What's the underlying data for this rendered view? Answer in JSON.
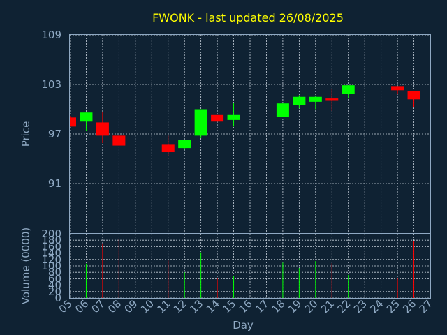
{
  "title": "FWONK - last updated 26/08/2025",
  "colors": {
    "background": "#0f2233",
    "up": "#00ff00",
    "down": "#ff0000",
    "axis": "#8fa9c3",
    "title": "#ffff00"
  },
  "chart_data": [
    {
      "type": "candlestick",
      "title": "FWONK - last updated 26/08/2025",
      "ylabel": "Price",
      "ylim": [
        85,
        109
      ],
      "yticks": [
        "91",
        "97",
        "103",
        "109"
      ],
      "grid": true,
      "x": [
        "05",
        "06",
        "07",
        "08",
        "09",
        "10",
        "11",
        "12",
        "13",
        "14",
        "15",
        "16",
        "17",
        "18",
        "19",
        "20",
        "21",
        "22",
        "23",
        "24",
        "25",
        "26",
        "27"
      ],
      "candles": [
        {
          "day": "05",
          "open": 99.0,
          "high": 99.2,
          "low": 97.9,
          "close": 97.9
        },
        {
          "day": "06",
          "open": 98.5,
          "high": 99.6,
          "low": 97.4,
          "close": 99.6
        },
        {
          "day": "07",
          "open": 98.4,
          "high": 99.7,
          "low": 95.9,
          "close": 96.8
        },
        {
          "day": "08",
          "open": 96.8,
          "high": 96.8,
          "low": 95.6,
          "close": 95.6
        },
        {
          "day": "11",
          "open": 95.7,
          "high": 96.8,
          "low": 94.4,
          "close": 94.8
        },
        {
          "day": "12",
          "open": 95.3,
          "high": 96.3,
          "low": 95.2,
          "close": 96.3
        },
        {
          "day": "13",
          "open": 96.8,
          "high": 100.0,
          "low": 96.5,
          "close": 100.0
        },
        {
          "day": "14",
          "open": 99.3,
          "high": 99.3,
          "low": 98.5,
          "close": 98.5
        },
        {
          "day": "15",
          "open": 98.7,
          "high": 100.8,
          "low": 97.9,
          "close": 99.3
        },
        {
          "day": "18",
          "open": 99.1,
          "high": 100.7,
          "low": 99.1,
          "close": 100.7
        },
        {
          "day": "19",
          "open": 100.5,
          "high": 101.7,
          "low": 100.1,
          "close": 101.5
        },
        {
          "day": "20",
          "open": 100.9,
          "high": 101.6,
          "low": 100.0,
          "close": 101.5
        },
        {
          "day": "21",
          "open": 101.3,
          "high": 102.5,
          "low": 99.8,
          "close": 101.1
        },
        {
          "day": "22",
          "open": 101.9,
          "high": 102.9,
          "low": 101.3,
          "close": 102.9
        },
        {
          "day": "25",
          "open": 102.8,
          "high": 102.8,
          "low": 101.8,
          "close": 102.3
        },
        {
          "day": "26",
          "open": 102.2,
          "high": 102.2,
          "low": 100.2,
          "close": 101.2
        }
      ]
    },
    {
      "type": "bar",
      "xlabel": "Day",
      "ylabel": "Volume (0000)",
      "ylim": [
        0,
        200
      ],
      "yticks": [
        "0",
        "20",
        "40",
        "60",
        "80",
        "100",
        "120",
        "140",
        "160",
        "180",
        "200"
      ],
      "x": [
        "05",
        "06",
        "07",
        "08",
        "09",
        "10",
        "11",
        "12",
        "13",
        "14",
        "15",
        "16",
        "17",
        "18",
        "19",
        "20",
        "21",
        "22",
        "23",
        "24",
        "25",
        "26",
        "27"
      ],
      "bars": [
        {
          "day": "06",
          "value": 107,
          "direction": "up"
        },
        {
          "day": "07",
          "value": 170,
          "direction": "down"
        },
        {
          "day": "08",
          "value": 183,
          "direction": "down"
        },
        {
          "day": "11",
          "value": 117,
          "direction": "down"
        },
        {
          "day": "12",
          "value": 80,
          "direction": "up"
        },
        {
          "day": "13",
          "value": 142,
          "direction": "up"
        },
        {
          "day": "14",
          "value": 62,
          "direction": "down"
        },
        {
          "day": "15",
          "value": 68,
          "direction": "up"
        },
        {
          "day": "18",
          "value": 110,
          "direction": "up"
        },
        {
          "day": "19",
          "value": 93,
          "direction": "up"
        },
        {
          "day": "20",
          "value": 115,
          "direction": "up"
        },
        {
          "day": "21",
          "value": 108,
          "direction": "down"
        },
        {
          "day": "22",
          "value": 72,
          "direction": "up"
        },
        {
          "day": "25",
          "value": 62,
          "direction": "down"
        },
        {
          "day": "26",
          "value": 178,
          "direction": "down"
        }
      ]
    }
  ]
}
